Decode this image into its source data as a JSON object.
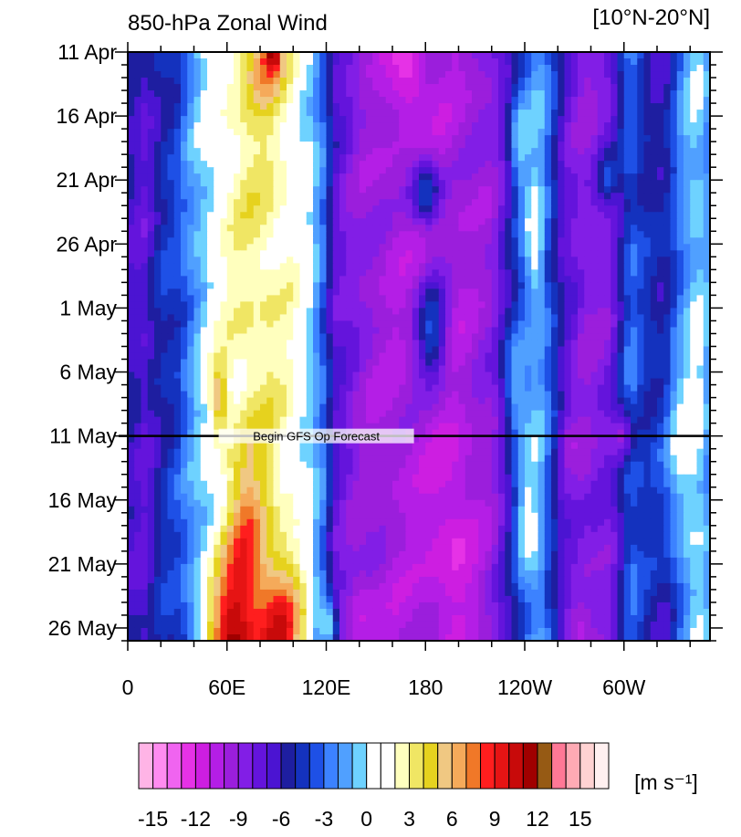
{
  "chart_data": {
    "type": "heatmap",
    "title": "850-hPa Zonal Wind",
    "region": "[10°N-20°N]",
    "units": "[m s⁻¹]",
    "x_ticks": [
      {
        "lon": 0,
        "label": "0"
      },
      {
        "lon": 60,
        "label": "60E"
      },
      {
        "lon": 120,
        "label": "120E"
      },
      {
        "lon": 180,
        "label": "180"
      },
      {
        "lon": 240,
        "label": "120W"
      },
      {
        "lon": 300,
        "label": "60W"
      }
    ],
    "xlim": [
      0,
      352
    ],
    "y_ticks": [
      {
        "day": 0,
        "label": "11 Apr"
      },
      {
        "day": 5,
        "label": "16 Apr"
      },
      {
        "day": 10,
        "label": "21 Apr"
      },
      {
        "day": 15,
        "label": "26 Apr"
      },
      {
        "day": 20,
        "label": "1 May"
      },
      {
        "day": 25,
        "label": "6 May"
      },
      {
        "day": 30,
        "label": "11 May"
      },
      {
        "day": 35,
        "label": "16 May"
      },
      {
        "day": 40,
        "label": "21 May"
      },
      {
        "day": 45,
        "label": "26 May"
      }
    ],
    "ylim": [
      0,
      46
    ],
    "annotation": {
      "day": 30,
      "text": "Begin GFS Op Forecast"
    },
    "colorbar": {
      "levels": [
        -16,
        -15,
        -14,
        -13,
        -12,
        -11,
        -10,
        -9,
        -8,
        -7,
        -6,
        -5,
        -4,
        -3,
        -2,
        -1,
        0,
        1,
        2,
        3,
        4,
        5,
        6,
        7,
        8,
        9,
        10,
        11,
        12,
        13,
        14,
        15,
        16
      ],
      "colors": [
        "#ffb4e6",
        "#ff8cf0",
        "#f064f0",
        "#e632e6",
        "#cd1ee1",
        "#b41ee6",
        "#9b1edc",
        "#821ee6",
        "#6414dc",
        "#4b14d2",
        "#1e1ea0",
        "#1432be",
        "#1e50e6",
        "#3c82ff",
        "#50a0ff",
        "#6ed2ff",
        "#ffffff",
        "#ffffff",
        "#ffffbe",
        "#f0e664",
        "#e6d21e",
        "#f0c882",
        "#f5aa5a",
        "#f07828",
        "#ff1e1e",
        "#e61414",
        "#c80a0a",
        "#a00000",
        "#965a14",
        "#ff7896",
        "#ffaab4",
        "#ffd2d2",
        "#fff0f0"
      ],
      "tick_labels": [
        "-15",
        "-12",
        "-9",
        "-6",
        "-3",
        "0",
        "3",
        "6",
        "9",
        "12",
        "15"
      ]
    },
    "field": {
      "base": [
        {
          "lon": 0,
          "value": -6
        },
        {
          "lon": 10,
          "value": -7
        },
        {
          "lon": 20,
          "value": -5
        },
        {
          "lon": 30,
          "value": -4
        },
        {
          "lon": 42,
          "value": -1
        },
        {
          "lon": 52,
          "value": 1
        },
        {
          "lon": 60,
          "value": 2
        },
        {
          "lon": 72,
          "value": 3
        },
        {
          "lon": 85,
          "value": 3
        },
        {
          "lon": 98,
          "value": 2
        },
        {
          "lon": 110,
          "value": 0
        },
        {
          "lon": 118,
          "value": -3
        },
        {
          "lon": 125,
          "value": -7
        },
        {
          "lon": 140,
          "value": -9
        },
        {
          "lon": 160,
          "value": -10
        },
        {
          "lon": 180,
          "value": -10
        },
        {
          "lon": 200,
          "value": -10
        },
        {
          "lon": 220,
          "value": -9
        },
        {
          "lon": 232,
          "value": -6
        },
        {
          "lon": 240,
          "value": -3
        },
        {
          "lon": 248,
          "value": -1
        },
        {
          "lon": 256,
          "value": -4
        },
        {
          "lon": 264,
          "value": -7
        },
        {
          "lon": 276,
          "value": -9
        },
        {
          "lon": 292,
          "value": -8
        },
        {
          "lon": 304,
          "value": -3
        },
        {
          "lon": 314,
          "value": -5
        },
        {
          "lon": 324,
          "value": -6
        },
        {
          "lon": 336,
          "value": -2
        },
        {
          "lon": 344,
          "value": 0
        },
        {
          "lon": 352,
          "value": -2
        }
      ],
      "features": [
        {
          "lon": 62,
          "day": 46,
          "dlon": 14,
          "dday": 6,
          "amp": 8
        },
        {
          "lon": 92,
          "day": 45,
          "dlon": 14,
          "dday": 5,
          "amp": 7
        },
        {
          "lon": 72,
          "day": 38,
          "dlon": 12,
          "dday": 7,
          "amp": 4
        },
        {
          "lon": 55,
          "day": 27,
          "dlon": 5,
          "dday": 2.5,
          "amp": 5
        },
        {
          "lon": 122,
          "day": 45,
          "dlon": 5,
          "dday": 2,
          "amp": 6
        },
        {
          "lon": 82,
          "day": 1,
          "dlon": 12,
          "dday": 3,
          "amp": 4
        },
        {
          "lon": 88,
          "day": 0,
          "dlon": 5,
          "dday": 1.5,
          "amp": 6
        },
        {
          "lon": 140,
          "day": 44,
          "dlon": 10,
          "dday": 4,
          "amp": -2
        },
        {
          "lon": 180,
          "day": 11,
          "dlon": 9,
          "dday": 2.5,
          "amp": 6
        },
        {
          "lon": 184,
          "day": 22,
          "dlon": 9,
          "dday": 4,
          "amp": 6
        },
        {
          "lon": 196,
          "day": 38,
          "dlon": 15,
          "dday": 8,
          "amp": -2
        },
        {
          "lon": 236,
          "day": 7,
          "dlon": 6,
          "dday": 4,
          "amp": 4
        },
        {
          "lon": 234,
          "day": 26,
          "dlon": 7,
          "dday": 4,
          "amp": 5
        },
        {
          "lon": 240,
          "day": 36,
          "dlon": 7,
          "dday": 5,
          "amp": 3
        },
        {
          "lon": 246,
          "day": 15,
          "dlon": 5,
          "dday": 4,
          "amp": 3
        },
        {
          "lon": 290,
          "day": 10,
          "dlon": 5,
          "dday": 2,
          "amp": 4
        },
        {
          "lon": 266,
          "day": 30,
          "dlon": 6,
          "dday": 2,
          "amp": -2
        },
        {
          "lon": 270,
          "day": 45,
          "dlon": 8,
          "dday": 2,
          "amp": -3
        },
        {
          "lon": 300,
          "day": 30,
          "dlon": 6,
          "dday": 2,
          "amp": -4
        },
        {
          "lon": 330,
          "day": 30,
          "dlon": 14,
          "dday": 8,
          "amp": 3
        },
        {
          "lon": 170,
          "day": 2,
          "dlon": 10,
          "dday": 3,
          "amp": -3
        }
      ]
    }
  }
}
